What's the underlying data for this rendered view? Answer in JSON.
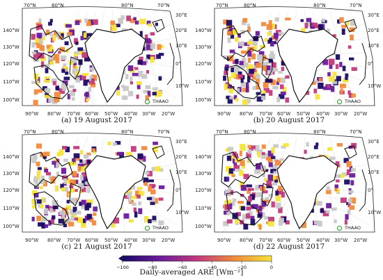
{
  "axis_labels": {
    "top": [
      "70°N",
      "80°N",
      "80°N",
      "70°N"
    ],
    "left": [
      "140°W",
      "130°W",
      "120°W",
      "110°W",
      "100°W"
    ],
    "right": [
      "30°E",
      "20°E",
      "10°E",
      "0°",
      "10°W"
    ],
    "bottom": [
      "90°W",
      "80°W",
      "70°W",
      "60°W",
      "50°W",
      "40°W",
      "30°W",
      "20°W"
    ]
  },
  "panels": [
    {
      "id": "a",
      "caption": "(a) 19 August 2017",
      "marker": "THAAO"
    },
    {
      "id": "b",
      "caption": "(b) 20 August 2017",
      "marker": "THAAO"
    },
    {
      "id": "c",
      "caption": "(c) 21 August 2017",
      "marker": "THAAO"
    },
    {
      "id": "d",
      "caption": "(d) 22 August 2017",
      "marker": "THAAO"
    }
  ],
  "colorbar": {
    "title": "Daily-averaged ARE [Wm⁻²]",
    "ticks": [
      "−100",
      "−80",
      "−60",
      "−40",
      "−20",
      "0"
    ],
    "min": -100,
    "max": 0,
    "colors": {
      "low": "#1a0b64",
      "mid_low": "#6a1b9a",
      "mid": "#c0397c",
      "mid_high": "#f08a3c",
      "high": "#f5e43a"
    }
  }
}
